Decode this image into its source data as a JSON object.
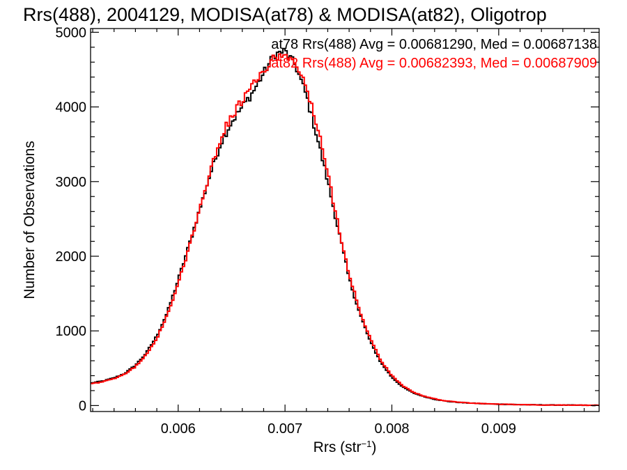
{
  "chart_data": {
    "type": "line",
    "step": true,
    "title": "Rrs(488), 2004129, MODISA(at78) & MODISA(at82), Oligotrop",
    "xlabel": "Rrs (str",
    "xlabel_sup": "−1",
    "xlabel_end": ")",
    "ylabel": "Number of Observations",
    "xlim": [
      0.00518,
      0.00994
    ],
    "ylim": [
      -80,
      5050
    ],
    "xticks": [
      0.006,
      0.007,
      0.008,
      0.009
    ],
    "xtick_labels": [
      "0.006",
      "0.007",
      "0.008",
      "0.009"
    ],
    "yticks": [
      0,
      1000,
      2000,
      3000,
      4000,
      5000
    ],
    "ytick_labels": [
      "0",
      "1000",
      "2000",
      "3000",
      "4000",
      "5000"
    ],
    "grid": false,
    "legend_position": "top-right",
    "legend": [
      {
        "text": "at78 Rrs(488) Avg = 0.00681290, Med = 0.00687138",
        "color": "#000000"
      },
      {
        "text": "at82 Rrs(488) Avg = 0.00682393, Med = 0.00687909",
        "color": "#ff0000"
      }
    ],
    "series": [
      {
        "name": "at78",
        "color": "#000000",
        "x": [
          0.00518,
          0.0053,
          0.0054,
          0.0055,
          0.0056,
          0.0057,
          0.0058,
          0.0059,
          0.006,
          0.0061,
          0.0062,
          0.0063,
          0.0064,
          0.0065,
          0.0066,
          0.0067,
          0.0068,
          0.0069,
          0.007,
          0.0071,
          0.0072,
          0.0073,
          0.0074,
          0.0075,
          0.0076,
          0.0077,
          0.0078,
          0.0079,
          0.008,
          0.0081,
          0.0082,
          0.0083,
          0.0084,
          0.0085,
          0.0086,
          0.0087,
          0.0088,
          0.0089,
          0.009,
          0.0092,
          0.0094,
          0.0096,
          0.0098,
          0.00994
        ],
        "y": [
          300,
          330,
          370,
          430,
          540,
          700,
          930,
          1250,
          1680,
          2140,
          2620,
          3100,
          3520,
          3800,
          4000,
          4200,
          4450,
          4700,
          4750,
          4550,
          4150,
          3600,
          3000,
          2350,
          1700,
          1230,
          850,
          570,
          380,
          250,
          170,
          120,
          85,
          60,
          45,
          35,
          28,
          22,
          18,
          12,
          8,
          6,
          4,
          3
        ]
      },
      {
        "name": "at82",
        "color": "#ff0000",
        "x": [
          0.00518,
          0.0053,
          0.0054,
          0.0055,
          0.0056,
          0.0057,
          0.0058,
          0.0059,
          0.006,
          0.0061,
          0.0062,
          0.0063,
          0.0064,
          0.0065,
          0.0066,
          0.0067,
          0.0068,
          0.0069,
          0.007,
          0.0071,
          0.0072,
          0.0073,
          0.0074,
          0.0075,
          0.0076,
          0.0077,
          0.0078,
          0.0079,
          0.008,
          0.0081,
          0.0082,
          0.0083,
          0.0084,
          0.0085,
          0.0086,
          0.0087,
          0.0088,
          0.0089,
          0.009,
          0.0092,
          0.0094,
          0.0096,
          0.0098,
          0.00994
        ],
        "y": [
          290,
          320,
          360,
          420,
          520,
          680,
          900,
          1210,
          1640,
          2110,
          2620,
          3130,
          3600,
          3880,
          4080,
          4280,
          4500,
          4650,
          4700,
          4600,
          4250,
          3750,
          3100,
          2400,
          1760,
          1270,
          890,
          600,
          400,
          265,
          180,
          125,
          90,
          63,
          47,
          37,
          29,
          23,
          18,
          12,
          8,
          6,
          4,
          3
        ]
      }
    ]
  }
}
